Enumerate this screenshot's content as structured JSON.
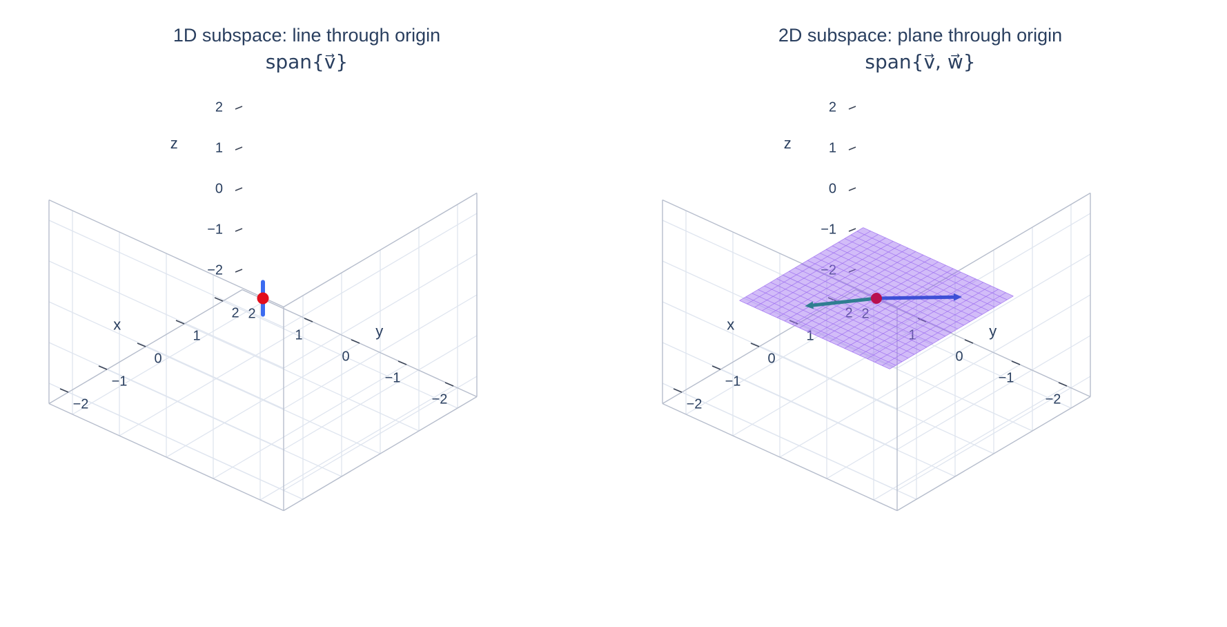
{
  "chart_data": [
    {
      "type": "scatter3d",
      "title": "1D subspace: line through origin",
      "subtitle": "span{v⃗}",
      "axes": {
        "x": {
          "label": "x",
          "range": [
            -2.5,
            2.5
          ],
          "ticks": [
            "−2",
            "−1",
            "0",
            "1",
            "2"
          ]
        },
        "y": {
          "label": "y",
          "range": [
            -2.5,
            2.5
          ],
          "ticks": [
            "−2",
            "−1",
            "0",
            "1",
            "2"
          ]
        },
        "z": {
          "label": "z",
          "range": [
            -2.5,
            2.5
          ],
          "ticks": [
            "−2",
            "−1",
            "0",
            "1",
            "2"
          ]
        }
      },
      "grid": true,
      "line": {
        "color": "#3b6bf0",
        "points": [
          [
            0,
            0,
            -0.4
          ],
          [
            0,
            0,
            0.4
          ]
        ]
      },
      "origin": {
        "point": [
          0,
          0,
          0
        ],
        "color": "#e30e1c"
      }
    },
    {
      "type": "surface3d",
      "title": "2D subspace: plane through origin",
      "subtitle": "span{v⃗, w⃗}",
      "axes": {
        "x": {
          "label": "x",
          "range": [
            -2.5,
            2.5
          ],
          "ticks": [
            "−2",
            "−1",
            "0",
            "1",
            "2"
          ]
        },
        "y": {
          "label": "y",
          "range": [
            -2.5,
            2.5
          ],
          "ticks": [
            "−2",
            "−1",
            "0",
            "1",
            "2"
          ]
        },
        "z": {
          "label": "z",
          "range": [
            -2.5,
            2.5
          ],
          "ticks": [
            "−2",
            "−1",
            "0",
            "1",
            "2"
          ]
        }
      },
      "grid": true,
      "plane": {
        "color": "#9b6bf0",
        "extent": [
          -1.6,
          1.6
        ],
        "height": 0,
        "grid_steps": 20
      },
      "vectors": [
        {
          "color": "#3e4fd6",
          "to": [
            1.0,
            -1.0,
            0
          ]
        },
        {
          "color": "#2f7e91",
          "to": [
            -1.0,
            0.7,
            0
          ]
        }
      ],
      "origin": {
        "point": [
          0,
          0,
          0
        ],
        "color": "#b8104e"
      }
    }
  ]
}
